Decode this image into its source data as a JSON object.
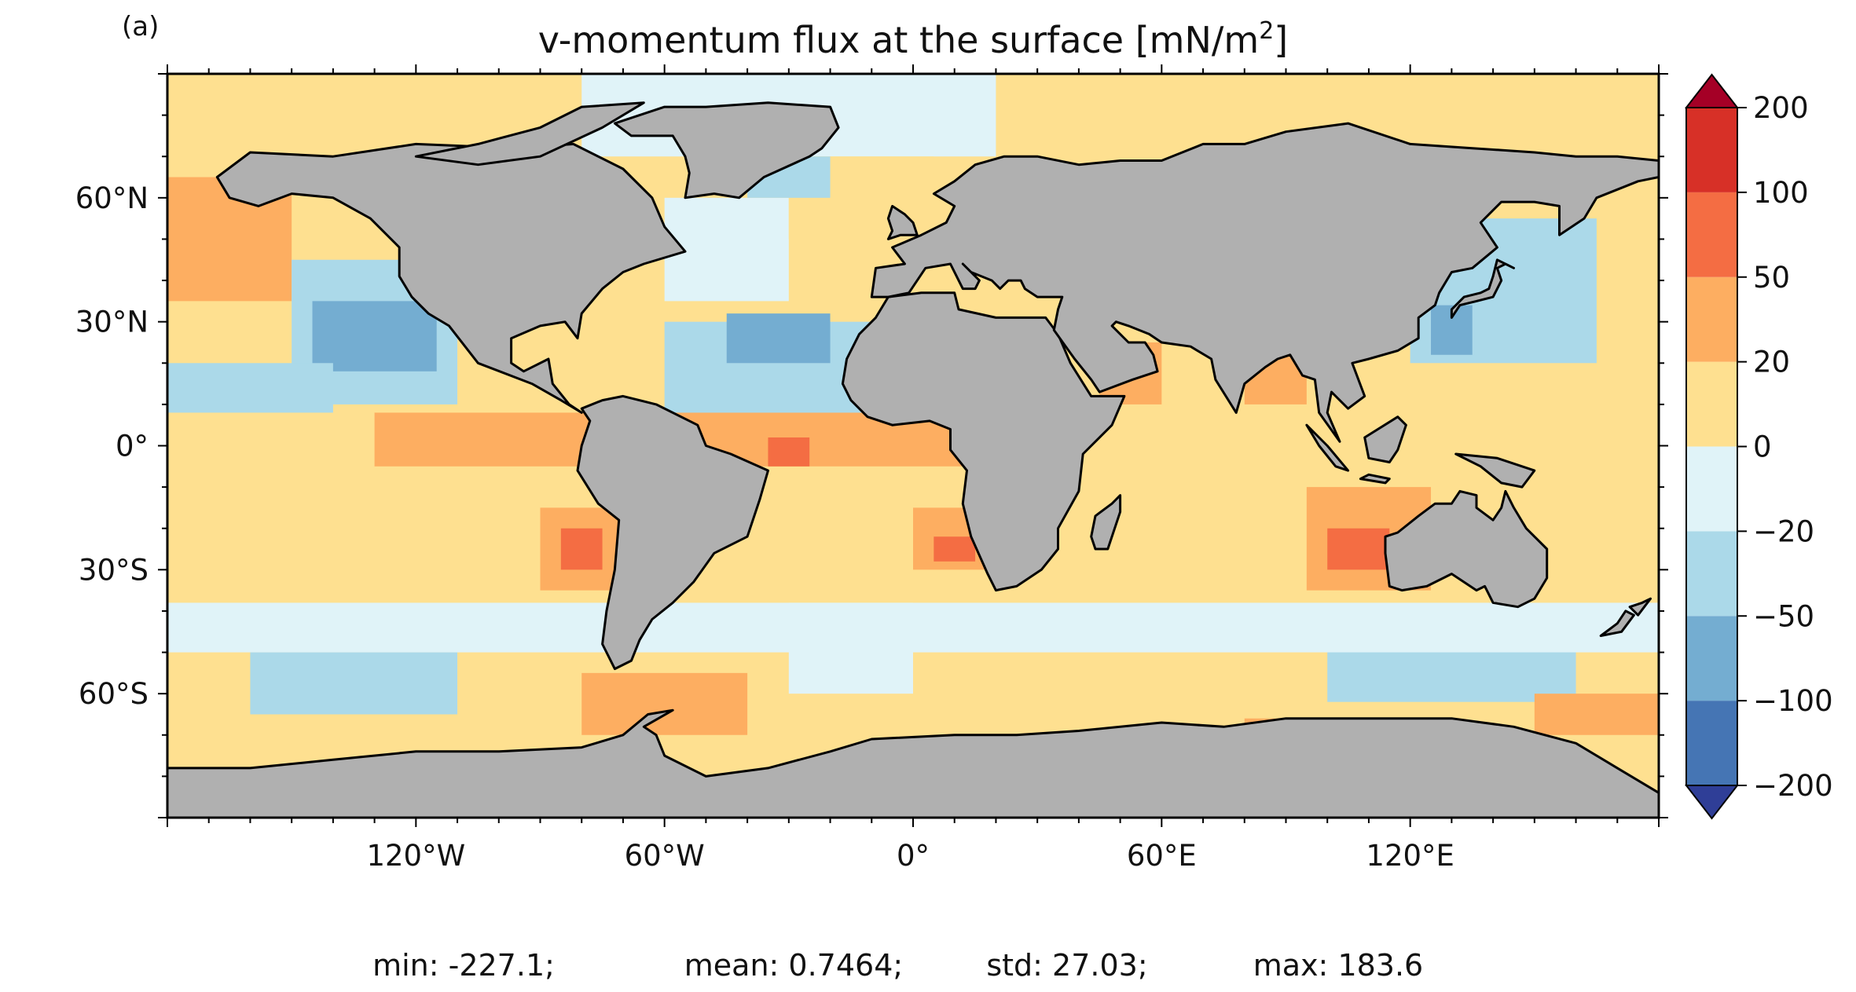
{
  "panel_label": "(a)",
  "title": "v-momentum flux at the surface [mN/m",
  "title_superscript": "2",
  "title_suffix": "]",
  "stats": {
    "min": "min: -227.1;",
    "mean": "mean: 0.7464;",
    "std": "std: 27.03;",
    "max": "max: 183.6"
  },
  "colors": {
    "land": "#b0b0b0",
    "coast": "#000000",
    "background": "#ffffff"
  },
  "chart_data": {
    "type": "heatmap",
    "title": "v-momentum flux at the surface [mN/m2]",
    "xlabel": "",
    "ylabel": "",
    "projection": "PlateCarree",
    "xlim": [
      -180,
      180
    ],
    "ylim": [
      -90,
      90
    ],
    "x_ticks": [
      -120,
      -60,
      0,
      60,
      120
    ],
    "x_tick_labels": [
      "120°W",
      "60°W",
      "0°",
      "60°E",
      "120°E"
    ],
    "y_ticks": [
      60,
      30,
      0,
      -30,
      -60
    ],
    "y_tick_labels": [
      "60°N",
      "30°N",
      "0°",
      "30°S",
      "60°S"
    ],
    "colorbar": {
      "levels": [
        -200,
        -100,
        -50,
        -20,
        0,
        20,
        50,
        100,
        200
      ],
      "tick_labels": [
        "−200",
        "−100",
        "−50",
        "−20",
        "0",
        "20",
        "50",
        "100",
        "200"
      ],
      "colors": [
        "#2f3e97",
        "#4575b4",
        "#74add1",
        "#abd9e9",
        "#e0f3f8",
        "#fee090",
        "#fdae61",
        "#f46d43",
        "#d73027",
        "#a50026"
      ],
      "extend": "both"
    },
    "statistics": {
      "min": -227.1,
      "mean": 0.7464,
      "std": 27.03,
      "max": 183.6
    },
    "regions": [
      {
        "lon": [
          -180,
          180
        ],
        "lat": [
          -90,
          90
        ],
        "value": 6
      },
      {
        "lon": [
          -180,
          180
        ],
        "lat": [
          66,
          90
        ],
        "value": 8
      },
      {
        "lon": [
          -80,
          20
        ],
        "lat": [
          70,
          90
        ],
        "value": -5
      },
      {
        "lon": [
          -180,
          -150
        ],
        "lat": [
          35,
          65
        ],
        "value": 28
      },
      {
        "lon": [
          -150,
          -110
        ],
        "lat": [
          10,
          45
        ],
        "value": -32
      },
      {
        "lon": [
          -145,
          -115
        ],
        "lat": [
          18,
          35
        ],
        "value": -55
      },
      {
        "lon": [
          -180,
          -140
        ],
        "lat": [
          8,
          20
        ],
        "value": -28
      },
      {
        "lon": [
          -60,
          -10
        ],
        "lat": [
          5,
          30
        ],
        "value": -28
      },
      {
        "lon": [
          -45,
          -20
        ],
        "lat": [
          20,
          32
        ],
        "value": -55
      },
      {
        "lon": [
          -60,
          -30
        ],
        "lat": [
          35,
          60
        ],
        "value": -5
      },
      {
        "lon": [
          -30,
          5
        ],
        "lat": [
          50,
          70
        ],
        "value": 12
      },
      {
        "lon": [
          -40,
          -20
        ],
        "lat": [
          60,
          70
        ],
        "value": -30
      },
      {
        "lon": [
          -130,
          30
        ],
        "lat": [
          -5,
          8
        ],
        "value": 28
      },
      {
        "lon": [
          -35,
          -25
        ],
        "lat": [
          -5,
          2
        ],
        "value": 55
      },
      {
        "lon": [
          -90,
          -70
        ],
        "lat": [
          -35,
          -15
        ],
        "value": 40
      },
      {
        "lon": [
          -85,
          -75
        ],
        "lat": [
          -30,
          -20
        ],
        "value": 60
      },
      {
        "lon": [
          0,
          20
        ],
        "lat": [
          -30,
          -15
        ],
        "value": 45
      },
      {
        "lon": [
          5,
          15
        ],
        "lat": [
          -28,
          -22
        ],
        "value": 70
      },
      {
        "lon": [
          -30,
          0
        ],
        "lat": [
          -60,
          -38
        ],
        "value": -8
      },
      {
        "lon": [
          -80,
          -40
        ],
        "lat": [
          -70,
          -55
        ],
        "value": 25
      },
      {
        "lon": [
          45,
          60
        ],
        "lat": [
          10,
          25
        ],
        "value": 40
      },
      {
        "lon": [
          80,
          95
        ],
        "lat": [
          10,
          22
        ],
        "value": 45
      },
      {
        "lon": [
          95,
          125
        ],
        "lat": [
          -35,
          -10
        ],
        "value": 40
      },
      {
        "lon": [
          100,
          115
        ],
        "lat": [
          -30,
          -20
        ],
        "value": 60
      },
      {
        "lon": [
          120,
          165
        ],
        "lat": [
          20,
          55
        ],
        "value": -30
      },
      {
        "lon": [
          125,
          135
        ],
        "lat": [
          22,
          34
        ],
        "value": -60
      },
      {
        "lon": [
          100,
          160
        ],
        "lat": [
          -62,
          -45
        ],
        "value": -25
      },
      {
        "lon": [
          -160,
          -110
        ],
        "lat": [
          -65,
          -50
        ],
        "value": -22
      },
      {
        "lon": [
          -180,
          180
        ],
        "lat": [
          -50,
          -38
        ],
        "value": -8
      },
      {
        "lon": [
          150,
          180
        ],
        "lat": [
          -70,
          -60
        ],
        "value": 30
      },
      {
        "lon": [
          80,
          120
        ],
        "lat": [
          -70,
          -66
        ],
        "value": 45
      }
    ]
  }
}
